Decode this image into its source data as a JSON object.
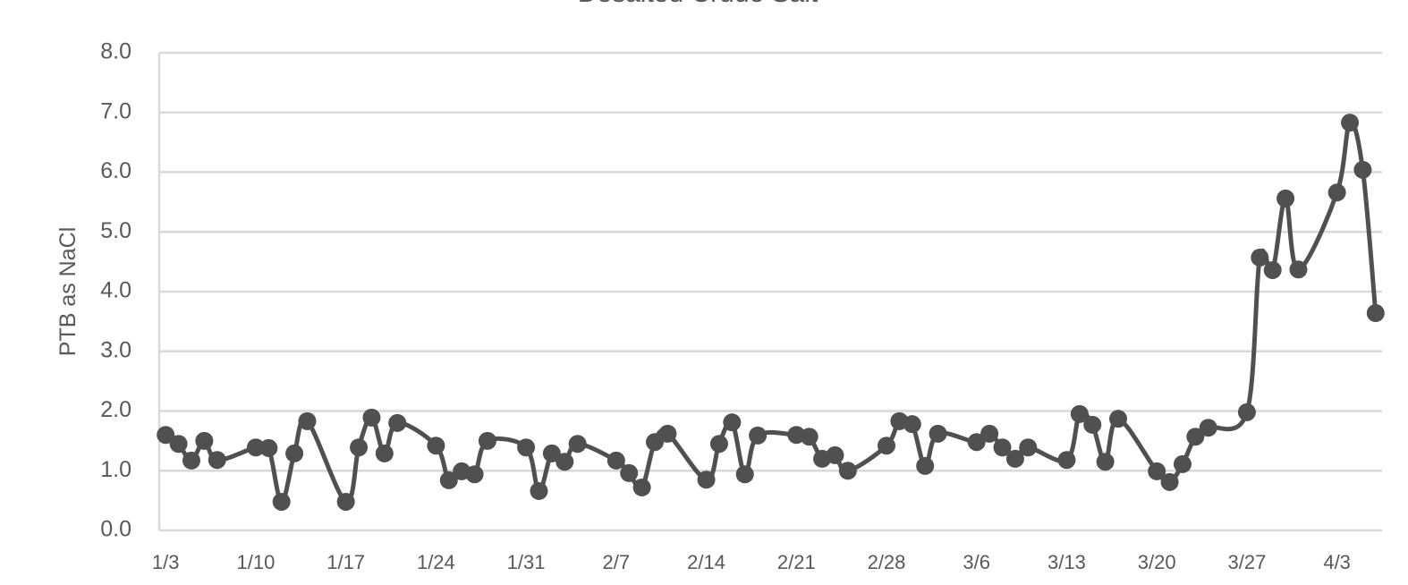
{
  "chart_data": {
    "type": "line",
    "title": "Desalted Crude Salt",
    "y_label": "PTB as NaCl",
    "x": [
      "1/3",
      "1/4",
      "1/5",
      "1/6",
      "1/7",
      "1/10",
      "1/11",
      "1/12",
      "1/13",
      "1/14",
      "1/17",
      "1/18",
      "1/19",
      "1/20",
      "1/21",
      "1/24",
      "1/25",
      "1/26",
      "1/27",
      "1/28",
      "1/31",
      "2/1",
      "2/2",
      "2/3",
      "2/4",
      "2/7",
      "2/8",
      "2/9",
      "2/10",
      "2/11",
      "2/14",
      "2/15",
      "2/16",
      "2/17",
      "2/18",
      "2/21",
      "2/22",
      "2/23",
      "2/24",
      "2/25",
      "2/28",
      "2/29",
      "3/1",
      "3/2",
      "3/3",
      "3/6",
      "3/7",
      "3/8",
      "3/9",
      "3/10",
      "3/13",
      "3/14",
      "3/15",
      "3/16",
      "3/17",
      "3/20",
      "3/21",
      "3/22",
      "3/23",
      "3/24",
      "3/27",
      "3/28",
      "3/29",
      "3/30",
      "3/31",
      "4/3",
      "4/4",
      "4/5",
      "4/6"
    ],
    "series": [
      {
        "name": "PTB as NaCl",
        "color": "#505050",
        "values": [
          1.6,
          1.45,
          1.17,
          1.5,
          1.18,
          1.39,
          1.38,
          0.48,
          1.29,
          1.83,
          0.48,
          1.39,
          1.89,
          1.29,
          1.8,
          1.42,
          0.84,
          0.99,
          0.94,
          1.5,
          1.39,
          0.66,
          1.29,
          1.15,
          1.45,
          1.17,
          0.96,
          0.72,
          1.48,
          1.62,
          0.85,
          1.45,
          1.81,
          0.94,
          1.59,
          1.6,
          1.57,
          1.2,
          1.26,
          1.0,
          1.42,
          1.83,
          1.78,
          1.08,
          1.62,
          1.48,
          1.62,
          1.39,
          1.2,
          1.39,
          1.18,
          1.95,
          1.77,
          1.15,
          1.87,
          0.99,
          0.81,
          1.11,
          1.57,
          1.72,
          1.98,
          4.57,
          4.36,
          5.56,
          4.37,
          5.66,
          6.83,
          6.04,
          3.64
        ]
      }
    ],
    "xlim": [
      "1/3",
      "4/6"
    ],
    "xticks": [
      "1/3",
      "1/10",
      "1/17",
      "1/24",
      "1/31",
      "2/7",
      "2/14",
      "2/21",
      "2/28",
      "3/6",
      "3/13",
      "3/20",
      "3/27",
      "4/3"
    ],
    "ylim": [
      0,
      8
    ],
    "yticks": [
      {
        "value": 0,
        "label": "0.0"
      },
      {
        "value": 1,
        "label": "1.0"
      },
      {
        "value": 2,
        "label": "2.0"
      },
      {
        "value": 3,
        "label": "3.0"
      },
      {
        "value": 4,
        "label": "4.0"
      },
      {
        "value": 5,
        "label": "5.0"
      },
      {
        "value": 6,
        "label": "6.0"
      },
      {
        "value": 7,
        "label": "7.0"
      },
      {
        "value": 8,
        "label": "8.0"
      }
    ],
    "grid": true
  }
}
